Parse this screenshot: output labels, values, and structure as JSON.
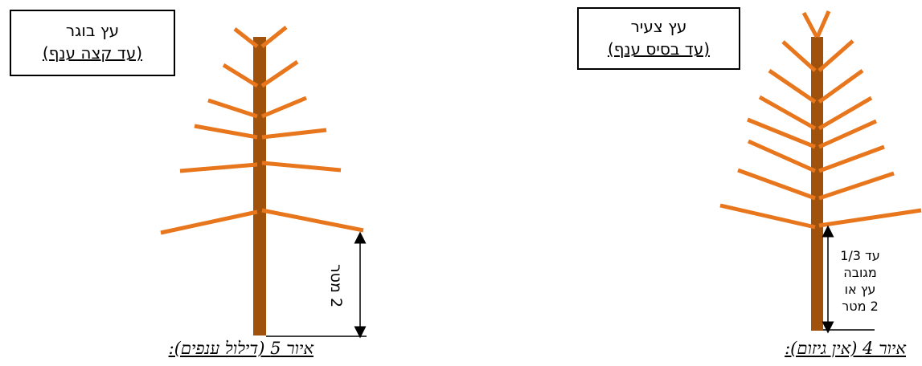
{
  "left_figure": {
    "box_title": "עץ בוגר",
    "box_subtitle": "(עד קצה ענף)",
    "measure_label": "2 מטר",
    "caption": "איור 5 (דילול ענפים):"
  },
  "right_figure": {
    "box_title": "עץ צעיר",
    "box_subtitle": "(עד בסיס ענף)",
    "measure_lines": [
      "עד 1/3",
      "מגובה",
      "עץ או",
      "2 מטר"
    ],
    "caption": "איור 4 (אין גיזום):"
  },
  "colors": {
    "trunk": "#a0520c",
    "branch": "#e8761c",
    "outline": "#000000"
  }
}
